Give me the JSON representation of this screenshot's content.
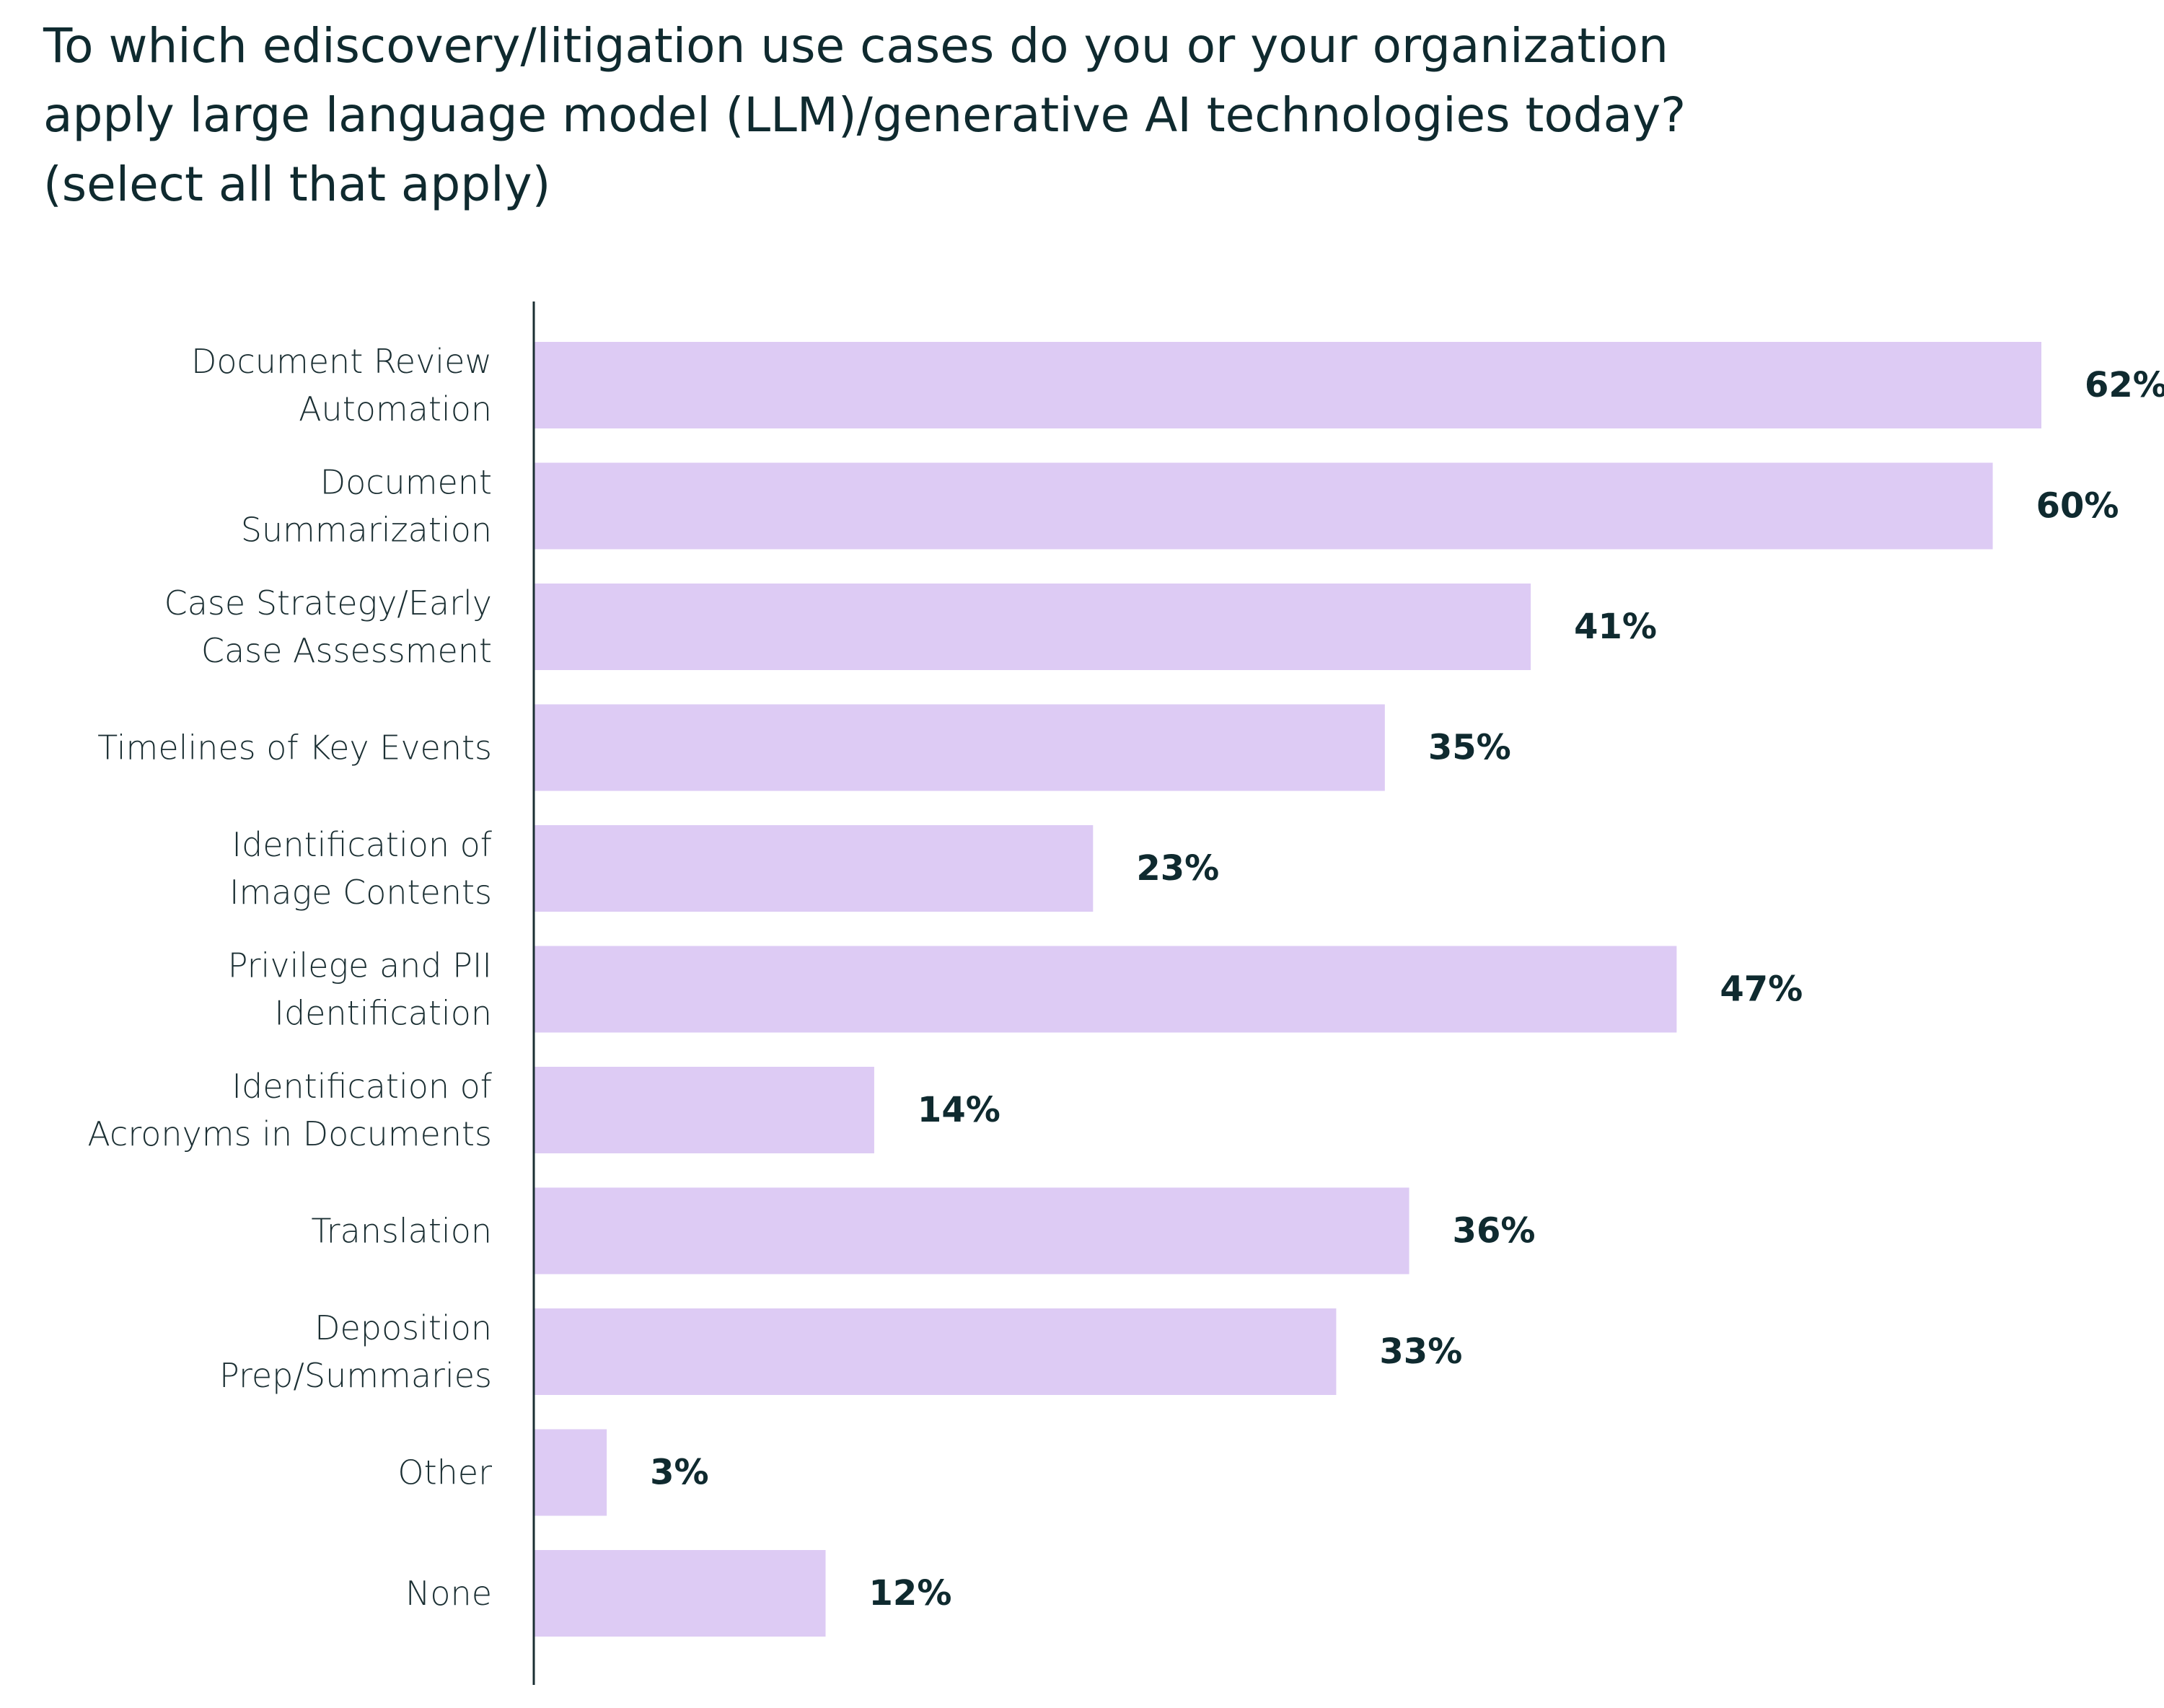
{
  "chart_data": {
    "type": "bar",
    "orientation": "horizontal",
    "title_lines": [
      "To which ediscovery/litigation use cases do you or your organization",
      "apply large language model (LLM)/generative AI technologies today?",
      "(select all that apply)"
    ],
    "categories": [
      [
        "Document Review",
        "Automation"
      ],
      [
        "Document",
        "Summarization"
      ],
      [
        "Case Strategy/Early",
        "Case Assessment"
      ],
      [
        "Timelines of Key Events"
      ],
      [
        "Identification of",
        "Image Contents"
      ],
      [
        "Privilege and PII",
        "Identification"
      ],
      [
        "Identification of",
        "Acronyms in Documents"
      ],
      [
        "Translation"
      ],
      [
        "Deposition",
        "Prep/Summaries"
      ],
      [
        "Other"
      ],
      [
        "None"
      ]
    ],
    "values": [
      62,
      60,
      41,
      35,
      23,
      47,
      14,
      36,
      33,
      3,
      12
    ],
    "value_labels": [
      "62%",
      "60%",
      "41%",
      "35%",
      "23%",
      "47%",
      "14%",
      "36%",
      "33%",
      "3%",
      "12%"
    ],
    "xlim": [
      0,
      62
    ],
    "unit": "%",
    "grid": false,
    "legend": "none",
    "colors": {
      "bar": "#ddcbf4",
      "axis": "#1b2f33",
      "text": "#0f2a2f"
    }
  }
}
